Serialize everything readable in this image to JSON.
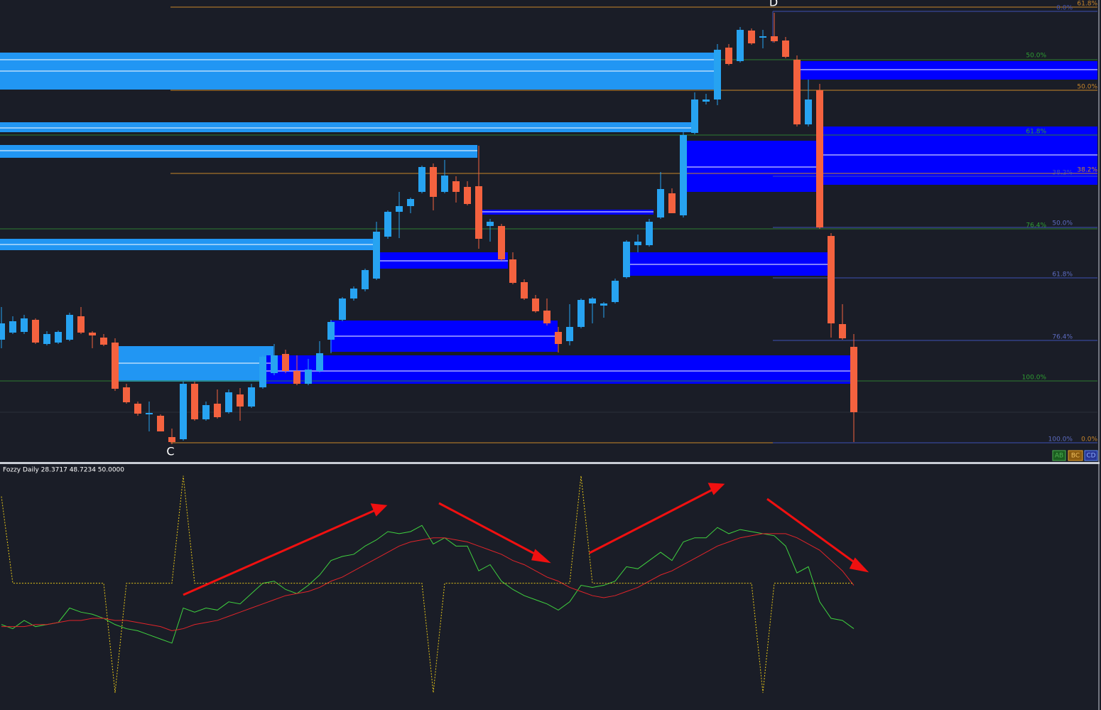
{
  "chart_data": [
    {
      "type": "candlestick",
      "ylim": [
        0,
        650
      ],
      "up_color": "#27a3f1",
      "down_color": "#f4623f",
      "open": [
        172,
        182,
        183,
        200,
        166,
        168,
        172,
        205,
        182,
        175,
        168,
        105,
        82,
        67,
        65,
        35,
        32,
        110,
        60,
        82,
        70,
        95,
        78,
        105,
        125,
        152,
        128,
        110,
        128,
        172,
        200,
        230,
        243,
        258,
        317,
        352,
        360,
        380,
        415,
        380,
        395,
        387,
        388,
        332,
        332,
        285,
        253,
        230,
        213,
        183,
        170,
        190,
        223,
        220,
        225,
        260,
        305,
        305,
        344,
        378,
        347,
        463,
        507,
        510,
        583,
        564,
        607,
        597,
        599,
        593,
        566,
        475,
        523,
        318,
        194,
        162
      ],
      "high": [
        218,
        205,
        207,
        202,
        184,
        185,
        210,
        218,
        184,
        180,
        174,
        110,
        85,
        85,
        67,
        47,
        113,
        113,
        85,
        102,
        102,
        104,
        110,
        150,
        166,
        158,
        150,
        145,
        170,
        200,
        232,
        247,
        272,
        338,
        354,
        380,
        372,
        417,
        420,
        425,
        402,
        395,
        445,
        342,
        335,
        295,
        257,
        235,
        230,
        190,
        222,
        230,
        232,
        225,
        258,
        312,
        320,
        342,
        408,
        385,
        464,
        520,
        518,
        588,
        588,
        612,
        610,
        608,
        632,
        598,
        572,
        538,
        532,
        322,
        222,
        180
      ],
      "low": [
        160,
        180,
        180,
        166,
        164,
        166,
        170,
        180,
        160,
        163,
        100,
        82,
        65,
        43,
        43,
        25,
        30,
        58,
        58,
        61,
        68,
        58,
        76,
        103,
        122,
        125,
        108,
        108,
        126,
        153,
        198,
        227,
        240,
        256,
        314,
        315,
        350,
        378,
        354,
        378,
        365,
        361,
        300,
        310,
        283,
        250,
        228,
        210,
        192,
        154,
        164,
        188,
        195,
        203,
        223,
        258,
        295,
        303,
        342,
        350,
        344,
        461,
        503,
        502,
        558,
        562,
        587,
        582,
        590,
        568,
        472,
        472,
        328,
        175,
        172,
        28
      ],
      "close": [
        195,
        198,
        202,
        168,
        180,
        183,
        207,
        182,
        178,
        165,
        103,
        84,
        68,
        69,
        43,
        28,
        110,
        60,
        80,
        63,
        98,
        78,
        105,
        148,
        150,
        128,
        110,
        130,
        153,
        197,
        230,
        244,
        270,
        324,
        352,
        360,
        370,
        415,
        373,
        403,
        380,
        363,
        314,
        338,
        285,
        252,
        230,
        212,
        195,
        166,
        190,
        228,
        230,
        223,
        255,
        310,
        310,
        338,
        384,
        350,
        460,
        510,
        510,
        580,
        560,
        608,
        589,
        599,
        592,
        570,
        475,
        510,
        330,
        195,
        174,
        70
      ],
      "annotations": [
        "D",
        "C",
        "61.8%",
        "0.0%",
        "50.0%",
        "50.0%",
        "61.8%",
        "38.2%",
        "38.2%",
        "76.4%",
        "50.0%",
        "61.8%",
        "76.4%",
        "100.0%",
        "100.0%",
        "0.0%"
      ],
      "buttons": [
        "AB",
        "BC",
        "CD"
      ]
    },
    {
      "type": "line",
      "title": "Fozzy Daily 28.3717 48.7234 50.0000",
      "ylim": [
        -10,
        107
      ],
      "series": [
        {
          "color": "#3fd13f",
          "style": "solid",
          "values": [
            30,
            28,
            32,
            29,
            30,
            31,
            38,
            36,
            35,
            33,
            30,
            28,
            27,
            25,
            23,
            21,
            38,
            36,
            38,
            37,
            41,
            40,
            45,
            50,
            51,
            47,
            45,
            49,
            54,
            61,
            63,
            64,
            68,
            71,
            75,
            74,
            75,
            78,
            69,
            72,
            68,
            68,
            56,
            59,
            51,
            47,
            44,
            42,
            40,
            37,
            41,
            49,
            48,
            49,
            51,
            58,
            57,
            61,
            65,
            61,
            70,
            72,
            72,
            77,
            74,
            76,
            75,
            74,
            73,
            68,
            55,
            58,
            41,
            33,
            32,
            28
          ]
        },
        {
          "color": "#e0242a",
          "style": "solid",
          "values": [
            29,
            29,
            29,
            30,
            30,
            31,
            32,
            32,
            33,
            33,
            32,
            32,
            31,
            30,
            29,
            27,
            28,
            30,
            31,
            32,
            34,
            36,
            38,
            40,
            42,
            44,
            45,
            46,
            48,
            51,
            53,
            56,
            59,
            62,
            65,
            68,
            70,
            71,
            72,
            72,
            71,
            70,
            68,
            66,
            64,
            61,
            59,
            56,
            53,
            51,
            48,
            46,
            44,
            43,
            44,
            46,
            48,
            51,
            54,
            56,
            59,
            62,
            65,
            68,
            70,
            72,
            73,
            74,
            74,
            74,
            72,
            69,
            66,
            61,
            56,
            49
          ]
        },
        {
          "color": "#e6c619",
          "style": "dotted",
          "values": [
            92,
            50,
            50,
            50,
            50,
            50,
            50,
            50,
            50,
            50,
            -3,
            50,
            50,
            50,
            50,
            50,
            102,
            50,
            50,
            50,
            50,
            50,
            50,
            50,
            50,
            50,
            50,
            50,
            50,
            50,
            50,
            50,
            50,
            50,
            50,
            50,
            50,
            50,
            -3,
            50,
            50,
            50,
            50,
            50,
            50,
            50,
            50,
            50,
            50,
            50,
            50,
            102,
            50,
            50,
            50,
            50,
            50,
            50,
            50,
            50,
            50,
            50,
            50,
            50,
            50,
            50,
            50,
            -3,
            50,
            50,
            50,
            50,
            50,
            50,
            50,
            50
          ]
        }
      ]
    }
  ]
}
